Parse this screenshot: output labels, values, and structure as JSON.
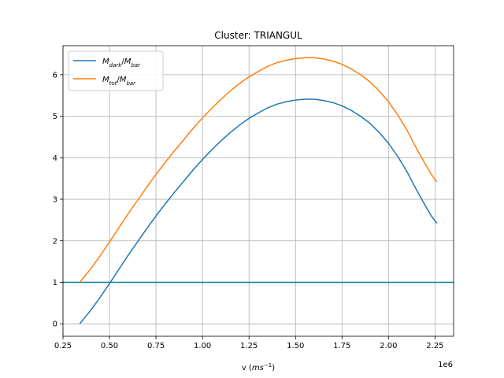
{
  "chart_data": {
    "type": "line",
    "title": "Cluster: TRIANGUL",
    "xlabel": "v (ms⁻¹)",
    "x_offset_label": "1e6",
    "ylabel": "",
    "xlim": [
      0.25,
      2.35
    ],
    "ylim": [
      -0.3,
      6.7
    ],
    "x_scale": 1000000,
    "xticks": [
      0.25,
      0.5,
      0.75,
      1.0,
      1.25,
      1.5,
      1.75,
      2.0,
      2.25
    ],
    "xtick_labels": [
      "0.25",
      "0.50",
      "0.75",
      "1.00",
      "1.25",
      "1.50",
      "1.75",
      "2.00",
      "2.25"
    ],
    "yticks": [
      0,
      1,
      2,
      3,
      4,
      5,
      6
    ],
    "ytick_labels": [
      "0",
      "1",
      "2",
      "3",
      "4",
      "5",
      "6"
    ],
    "grid": true,
    "legend_position": "top-left",
    "series": [
      {
        "name": "M_dark/M_bar",
        "color": "#1f77b4",
        "x": [
          0.34,
          0.4,
          0.45,
          0.5,
          0.55,
          0.6,
          0.65,
          0.7,
          0.75,
          0.8,
          0.85,
          0.9,
          0.95,
          1.0,
          1.05,
          1.1,
          1.15,
          1.2,
          1.25,
          1.3,
          1.35,
          1.4,
          1.45,
          1.5,
          1.55,
          1.58,
          1.6,
          1.65,
          1.7,
          1.75,
          1.8,
          1.85,
          1.9,
          1.95,
          2.0,
          2.05,
          2.1,
          2.15,
          2.2,
          2.23,
          2.26
        ],
        "y": [
          0.0,
          0.33,
          0.64,
          0.97,
          1.31,
          1.65,
          1.97,
          2.29,
          2.6,
          2.89,
          3.17,
          3.44,
          3.71,
          3.96,
          4.19,
          4.41,
          4.61,
          4.79,
          4.95,
          5.08,
          5.2,
          5.29,
          5.35,
          5.39,
          5.41,
          5.41,
          5.41,
          5.38,
          5.33,
          5.25,
          5.14,
          5.0,
          4.83,
          4.61,
          4.35,
          4.03,
          3.66,
          3.23,
          2.83,
          2.6,
          2.42
        ]
      },
      {
        "name": "M_tot/M_bar",
        "color": "#ff7f0e",
        "x": [
          0.34,
          0.4,
          0.45,
          0.5,
          0.55,
          0.6,
          0.65,
          0.7,
          0.75,
          0.8,
          0.85,
          0.9,
          0.95,
          1.0,
          1.05,
          1.1,
          1.15,
          1.2,
          1.25,
          1.3,
          1.35,
          1.4,
          1.45,
          1.5,
          1.55,
          1.58,
          1.6,
          1.65,
          1.7,
          1.75,
          1.8,
          1.85,
          1.9,
          1.95,
          2.0,
          2.05,
          2.1,
          2.15,
          2.2,
          2.23,
          2.26
        ],
        "y": [
          1.0,
          1.33,
          1.64,
          1.97,
          2.31,
          2.65,
          2.97,
          3.29,
          3.6,
          3.89,
          4.17,
          4.44,
          4.71,
          4.96,
          5.19,
          5.41,
          5.61,
          5.79,
          5.95,
          6.08,
          6.2,
          6.29,
          6.35,
          6.39,
          6.41,
          6.41,
          6.41,
          6.38,
          6.33,
          6.25,
          6.14,
          6.0,
          5.83,
          5.61,
          5.35,
          5.03,
          4.66,
          4.23,
          3.83,
          3.6,
          3.42
        ]
      }
    ],
    "hlines": [
      {
        "y": 1.0,
        "color": "#0f7b8c"
      }
    ]
  }
}
